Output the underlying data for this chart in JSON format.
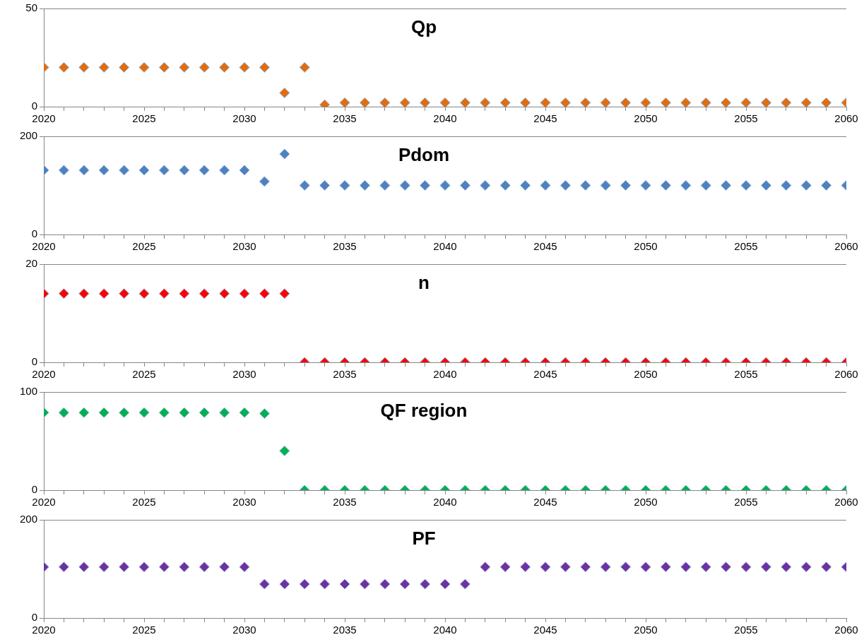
{
  "chart_data": [
    {
      "type": "scatter",
      "title": "Qp",
      "x": [
        2020,
        2021,
        2022,
        2023,
        2024,
        2025,
        2026,
        2027,
        2028,
        2029,
        2030,
        2031,
        2032,
        2033,
        2034,
        2035,
        2036,
        2037,
        2038,
        2039,
        2040,
        2041,
        2042,
        2043,
        2044,
        2045,
        2046,
        2047,
        2048,
        2049,
        2050,
        2051,
        2052,
        2053,
        2054,
        2055,
        2056,
        2057,
        2058,
        2059,
        2060
      ],
      "values": [
        20,
        20,
        20,
        20,
        20,
        20,
        20,
        20,
        20,
        20,
        20,
        20,
        7,
        20,
        1,
        2,
        2,
        2,
        2,
        2,
        2,
        2,
        2,
        2,
        2,
        2,
        2,
        2,
        2,
        2,
        2,
        2,
        2,
        2,
        2,
        2,
        2,
        2,
        2,
        2,
        2
      ],
      "color": "#e46c0a",
      "marker": "diamond",
      "ylim": [
        0,
        50
      ],
      "yticks": [
        0,
        50
      ],
      "xlim": [
        2020,
        2060
      ],
      "xticks": [
        2020,
        {
          "value": 2021,
          "label": null
        },
        {
          "value": 2022,
          "label": null
        },
        {
          "value": 2023,
          "label": null
        },
        {
          "value": 2024,
          "label": null
        },
        2025,
        {
          "value": 2026,
          "label": null
        },
        {
          "value": 2027,
          "label": null
        },
        {
          "value": 2028,
          "label": null
        },
        {
          "value": 2029,
          "label": null
        },
        2030,
        {
          "value": 2031,
          "label": null
        },
        {
          "value": 2032,
          "label": null
        },
        {
          "value": 2033,
          "label": null
        },
        {
          "value": 2034,
          "label": null
        },
        2035,
        {
          "value": 2036,
          "label": null
        },
        {
          "value": 2037,
          "label": null
        },
        {
          "value": 2038,
          "label": null
        },
        {
          "value": 2039,
          "label": null
        },
        2040,
        {
          "value": 2041,
          "label": null
        },
        {
          "value": 2042,
          "label": null
        },
        {
          "value": 2043,
          "label": null
        },
        {
          "value": 2044,
          "label": null
        },
        2045,
        {
          "value": 2046,
          "label": null
        },
        {
          "value": 2047,
          "label": null
        },
        {
          "value": 2048,
          "label": null
        },
        {
          "value": 2049,
          "label": null
        },
        2050,
        {
          "value": 2051,
          "label": null
        },
        {
          "value": 2052,
          "label": null
        },
        {
          "value": 2053,
          "label": null
        },
        {
          "value": 2054,
          "label": null
        },
        2055,
        {
          "value": 2056,
          "label": null
        },
        {
          "value": 2057,
          "label": null
        },
        {
          "value": 2058,
          "label": null
        },
        {
          "value": 2059,
          "label": null
        },
        2060
      ]
    },
    {
      "type": "scatter",
      "title": "Pdom",
      "x": [
        2020,
        2021,
        2022,
        2023,
        2024,
        2025,
        2026,
        2027,
        2028,
        2029,
        2030,
        2031,
        2032,
        2033,
        2034,
        2035,
        2036,
        2037,
        2038,
        2039,
        2040,
        2041,
        2042,
        2043,
        2044,
        2045,
        2046,
        2047,
        2048,
        2049,
        2050,
        2051,
        2052,
        2053,
        2054,
        2055,
        2056,
        2057,
        2058,
        2059,
        2060
      ],
      "values": [
        131,
        131,
        131,
        131,
        131,
        131,
        131,
        131,
        131,
        131,
        131,
        108,
        164,
        100,
        100,
        100,
        100,
        100,
        100,
        100,
        100,
        100,
        100,
        100,
        100,
        100,
        100,
        100,
        100,
        100,
        100,
        100,
        100,
        100,
        100,
        100,
        100,
        100,
        100,
        100,
        100
      ],
      "color": "#4f81bd",
      "marker": "diamond",
      "ylim": [
        0,
        200
      ],
      "yticks": [
        0,
        200
      ],
      "xlim": [
        2020,
        2060
      ],
      "xticks": [
        2020,
        {
          "value": 2021,
          "label": null
        },
        {
          "value": 2022,
          "label": null
        },
        {
          "value": 2023,
          "label": null
        },
        {
          "value": 2024,
          "label": null
        },
        2025,
        {
          "value": 2026,
          "label": null
        },
        {
          "value": 2027,
          "label": null
        },
        {
          "value": 2028,
          "label": null
        },
        {
          "value": 2029,
          "label": null
        },
        2030,
        {
          "value": 2031,
          "label": null
        },
        {
          "value": 2032,
          "label": null
        },
        {
          "value": 2033,
          "label": null
        },
        {
          "value": 2034,
          "label": null
        },
        2035,
        {
          "value": 2036,
          "label": null
        },
        {
          "value": 2037,
          "label": null
        },
        {
          "value": 2038,
          "label": null
        },
        {
          "value": 2039,
          "label": null
        },
        2040,
        {
          "value": 2041,
          "label": null
        },
        {
          "value": 2042,
          "label": null
        },
        {
          "value": 2043,
          "label": null
        },
        {
          "value": 2044,
          "label": null
        },
        2045,
        {
          "value": 2046,
          "label": null
        },
        {
          "value": 2047,
          "label": null
        },
        {
          "value": 2048,
          "label": null
        },
        {
          "value": 2049,
          "label": null
        },
        2050,
        {
          "value": 2051,
          "label": null
        },
        {
          "value": 2052,
          "label": null
        },
        {
          "value": 2053,
          "label": null
        },
        {
          "value": 2054,
          "label": null
        },
        2055,
        {
          "value": 2056,
          "label": null
        },
        {
          "value": 2057,
          "label": null
        },
        {
          "value": 2058,
          "label": null
        },
        {
          "value": 2059,
          "label": null
        },
        2060
      ]
    },
    {
      "type": "scatter",
      "title": "n",
      "x": [
        2020,
        2021,
        2022,
        2023,
        2024,
        2025,
        2026,
        2027,
        2028,
        2029,
        2030,
        2031,
        2032,
        2033,
        2034,
        2035,
        2036,
        2037,
        2038,
        2039,
        2040,
        2041,
        2042,
        2043,
        2044,
        2045,
        2046,
        2047,
        2048,
        2049,
        2050,
        2051,
        2052,
        2053,
        2054,
        2055,
        2056,
        2057,
        2058,
        2059,
        2060
      ],
      "values": [
        14,
        14,
        14,
        14,
        14,
        14,
        14,
        14,
        14,
        14,
        14,
        14,
        14,
        0,
        0,
        0,
        0,
        0,
        0,
        0,
        0,
        0,
        0,
        0,
        0,
        0,
        0,
        0,
        0,
        0,
        0,
        0,
        0,
        0,
        0,
        0,
        0,
        0,
        0,
        0,
        0
      ],
      "color": "#ff0000",
      "marker": "diamond",
      "ylim": [
        0,
        20
      ],
      "yticks": [
        0,
        20
      ],
      "xlim": [
        2020,
        2060
      ],
      "xticks": [
        2020,
        {
          "value": 2021,
          "label": null
        },
        {
          "value": 2022,
          "label": null
        },
        {
          "value": 2023,
          "label": null
        },
        {
          "value": 2024,
          "label": null
        },
        2025,
        {
          "value": 2026,
          "label": null
        },
        {
          "value": 2027,
          "label": null
        },
        {
          "value": 2028,
          "label": null
        },
        {
          "value": 2029,
          "label": null
        },
        2030,
        {
          "value": 2031,
          "label": null
        },
        {
          "value": 2032,
          "label": null
        },
        {
          "value": 2033,
          "label": null
        },
        {
          "value": 2034,
          "label": null
        },
        2035,
        {
          "value": 2036,
          "label": null
        },
        {
          "value": 2037,
          "label": null
        },
        {
          "value": 2038,
          "label": null
        },
        {
          "value": 2039,
          "label": null
        },
        2040,
        {
          "value": 2041,
          "label": null
        },
        {
          "value": 2042,
          "label": null
        },
        {
          "value": 2043,
          "label": null
        },
        {
          "value": 2044,
          "label": null
        },
        2045,
        {
          "value": 2046,
          "label": null
        },
        {
          "value": 2047,
          "label": null
        },
        {
          "value": 2048,
          "label": null
        },
        {
          "value": 2049,
          "label": null
        },
        2050,
        {
          "value": 2051,
          "label": null
        },
        {
          "value": 2052,
          "label": null
        },
        {
          "value": 2053,
          "label": null
        },
        {
          "value": 2054,
          "label": null
        },
        2055,
        {
          "value": 2056,
          "label": null
        },
        {
          "value": 2057,
          "label": null
        },
        {
          "value": 2058,
          "label": null
        },
        {
          "value": 2059,
          "label": null
        },
        2060
      ]
    },
    {
      "type": "scatter",
      "title": "QF region",
      "x": [
        2020,
        2021,
        2022,
        2023,
        2024,
        2025,
        2026,
        2027,
        2028,
        2029,
        2030,
        2031,
        2032,
        2033,
        2034,
        2035,
        2036,
        2037,
        2038,
        2039,
        2040,
        2041,
        2042,
        2043,
        2044,
        2045,
        2046,
        2047,
        2048,
        2049,
        2050,
        2051,
        2052,
        2053,
        2054,
        2055,
        2056,
        2057,
        2058,
        2059,
        2060
      ],
      "values": [
        79,
        79,
        79,
        79,
        79,
        79,
        79,
        79,
        79,
        79,
        79,
        78,
        40,
        0,
        0,
        0,
        0,
        0,
        0,
        0,
        0,
        0,
        0,
        0,
        0,
        0,
        0,
        0,
        0,
        0,
        0,
        0,
        0,
        0,
        0,
        0,
        0,
        0,
        0,
        0,
        0
      ],
      "color": "#00b050",
      "marker": "diamond",
      "ylim": [
        0,
        100
      ],
      "yticks": [
        0,
        100
      ],
      "xlim": [
        2020,
        2060
      ],
      "xticks": [
        2020,
        {
          "value": 2021,
          "label": null
        },
        {
          "value": 2022,
          "label": null
        },
        {
          "value": 2023,
          "label": null
        },
        {
          "value": 2024,
          "label": null
        },
        2025,
        {
          "value": 2026,
          "label": null
        },
        {
          "value": 2027,
          "label": null
        },
        {
          "value": 2028,
          "label": null
        },
        {
          "value": 2029,
          "label": null
        },
        2030,
        {
          "value": 2031,
          "label": null
        },
        {
          "value": 2032,
          "label": null
        },
        {
          "value": 2033,
          "label": null
        },
        {
          "value": 2034,
          "label": null
        },
        2035,
        {
          "value": 2036,
          "label": null
        },
        {
          "value": 2037,
          "label": null
        },
        {
          "value": 2038,
          "label": null
        },
        {
          "value": 2039,
          "label": null
        },
        2040,
        {
          "value": 2041,
          "label": null
        },
        {
          "value": 2042,
          "label": null
        },
        {
          "value": 2043,
          "label": null
        },
        {
          "value": 2044,
          "label": null
        },
        2045,
        {
          "value": 2046,
          "label": null
        },
        {
          "value": 2047,
          "label": null
        },
        {
          "value": 2048,
          "label": null
        },
        {
          "value": 2049,
          "label": null
        },
        2050,
        {
          "value": 2051,
          "label": null
        },
        {
          "value": 2052,
          "label": null
        },
        {
          "value": 2053,
          "label": null
        },
        {
          "value": 2054,
          "label": null
        },
        2055,
        {
          "value": 2056,
          "label": null
        },
        {
          "value": 2057,
          "label": null
        },
        {
          "value": 2058,
          "label": null
        },
        {
          "value": 2059,
          "label": null
        },
        2060
      ]
    },
    {
      "type": "scatter",
      "title": "PF",
      "x": [
        2020,
        2021,
        2022,
        2023,
        2024,
        2025,
        2026,
        2027,
        2028,
        2029,
        2030,
        2031,
        2032,
        2033,
        2034,
        2035,
        2036,
        2037,
        2038,
        2039,
        2040,
        2041,
        2042,
        2043,
        2044,
        2045,
        2046,
        2047,
        2048,
        2049,
        2050,
        2051,
        2052,
        2053,
        2054,
        2055,
        2056,
        2057,
        2058,
        2059,
        2060
      ],
      "values": [
        104,
        104,
        104,
        104,
        104,
        104,
        104,
        104,
        104,
        104,
        104,
        69,
        69,
        69,
        69,
        69,
        69,
        69,
        69,
        69,
        69,
        69,
        104,
        104,
        104,
        104,
        104,
        104,
        104,
        104,
        104,
        104,
        104,
        104,
        104,
        104,
        104,
        104,
        104,
        104,
        104
      ],
      "color": "#7030a0",
      "marker": "diamond",
      "ylim": [
        0,
        200
      ],
      "yticks": [
        0,
        200
      ],
      "xlim": [
        2020,
        2060
      ],
      "xticks": [
        2020,
        {
          "value": 2021,
          "label": null
        },
        {
          "value": 2022,
          "label": null
        },
        {
          "value": 2023,
          "label": null
        },
        {
          "value": 2024,
          "label": null
        },
        2025,
        {
          "value": 2026,
          "label": null
        },
        {
          "value": 2027,
          "label": null
        },
        {
          "value": 2028,
          "label": null
        },
        {
          "value": 2029,
          "label": null
        },
        2030,
        {
          "value": 2031,
          "label": null
        },
        {
          "value": 2032,
          "label": null
        },
        {
          "value": 2033,
          "label": null
        },
        {
          "value": 2034,
          "label": null
        },
        2035,
        {
          "value": 2036,
          "label": null
        },
        {
          "value": 2037,
          "label": null
        },
        {
          "value": 2038,
          "label": null
        },
        {
          "value": 2039,
          "label": null
        },
        2040,
        {
          "value": 2041,
          "label": null
        },
        {
          "value": 2042,
          "label": null
        },
        {
          "value": 2043,
          "label": null
        },
        {
          "value": 2044,
          "label": null
        },
        2045,
        {
          "value": 2046,
          "label": null
        },
        {
          "value": 2047,
          "label": null
        },
        {
          "value": 2048,
          "label": null
        },
        {
          "value": 2049,
          "label": null
        },
        2050,
        {
          "value": 2051,
          "label": null
        },
        {
          "value": 2052,
          "label": null
        },
        {
          "value": 2053,
          "label": null
        },
        {
          "value": 2054,
          "label": null
        },
        2055,
        {
          "value": 2056,
          "label": null
        },
        {
          "value": 2057,
          "label": null
        },
        {
          "value": 2058,
          "label": null
        },
        {
          "value": 2059,
          "label": null
        },
        2060
      ]
    }
  ]
}
